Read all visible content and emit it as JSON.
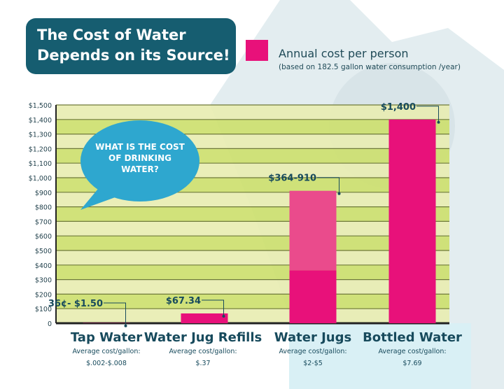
{
  "title_line1": "The Cost of Water",
  "title_line2": "Depends on its Source!",
  "legend": {
    "label": "Annual cost per person",
    "note": "(based on 182.5 gallon water consumption /year)",
    "color": "#e8117a"
  },
  "bubble": {
    "line1": "WHAT IS THE COST",
    "line2": "OF DRINKING",
    "line3": "WATER?"
  },
  "chart_data": {
    "type": "bar",
    "categories": [
      "Tap Water",
      "Water Jug Refills",
      "Water Jugs",
      "Bottled Water"
    ],
    "series": [
      {
        "values": [
          1.5,
          67.34,
          364,
          1400
        ],
        "color": "#e8117a"
      },
      {
        "values": [
          0,
          0,
          546,
          0
        ],
        "color": "#ea4b8c"
      }
    ],
    "data_labels": [
      "36¢- $1.50",
      "$67.34",
      "$364-910",
      "$1,400"
    ],
    "ylim": [
      0,
      1500
    ],
    "yticks": [
      0,
      100,
      200,
      300,
      400,
      500,
      600,
      700,
      800,
      900,
      1000,
      1100,
      1200,
      1300,
      1400,
      1500
    ],
    "ytick_labels": [
      "0",
      "$100",
      "$200",
      "$300",
      "$400",
      "$500",
      "$600",
      "$700",
      "$800",
      "$900",
      "$1,000",
      "$1,100",
      "$1,200",
      "$1,300",
      "$1,400",
      "$1,500"
    ],
    "grid": true
  },
  "categories_info": [
    {
      "name": "Tap Water",
      "sub": "Average cost/gallon:",
      "value": "$.002-$.008"
    },
    {
      "name": "Water Jug Refills",
      "sub": "Average cost/gallon:",
      "value": "$.37"
    },
    {
      "name": "Water Jugs",
      "sub": "Average cost/gallon:",
      "value": "$2-$5"
    },
    {
      "name": "Bottled Water",
      "sub": "Average cost/gallon:",
      "value": "$7.69"
    }
  ]
}
